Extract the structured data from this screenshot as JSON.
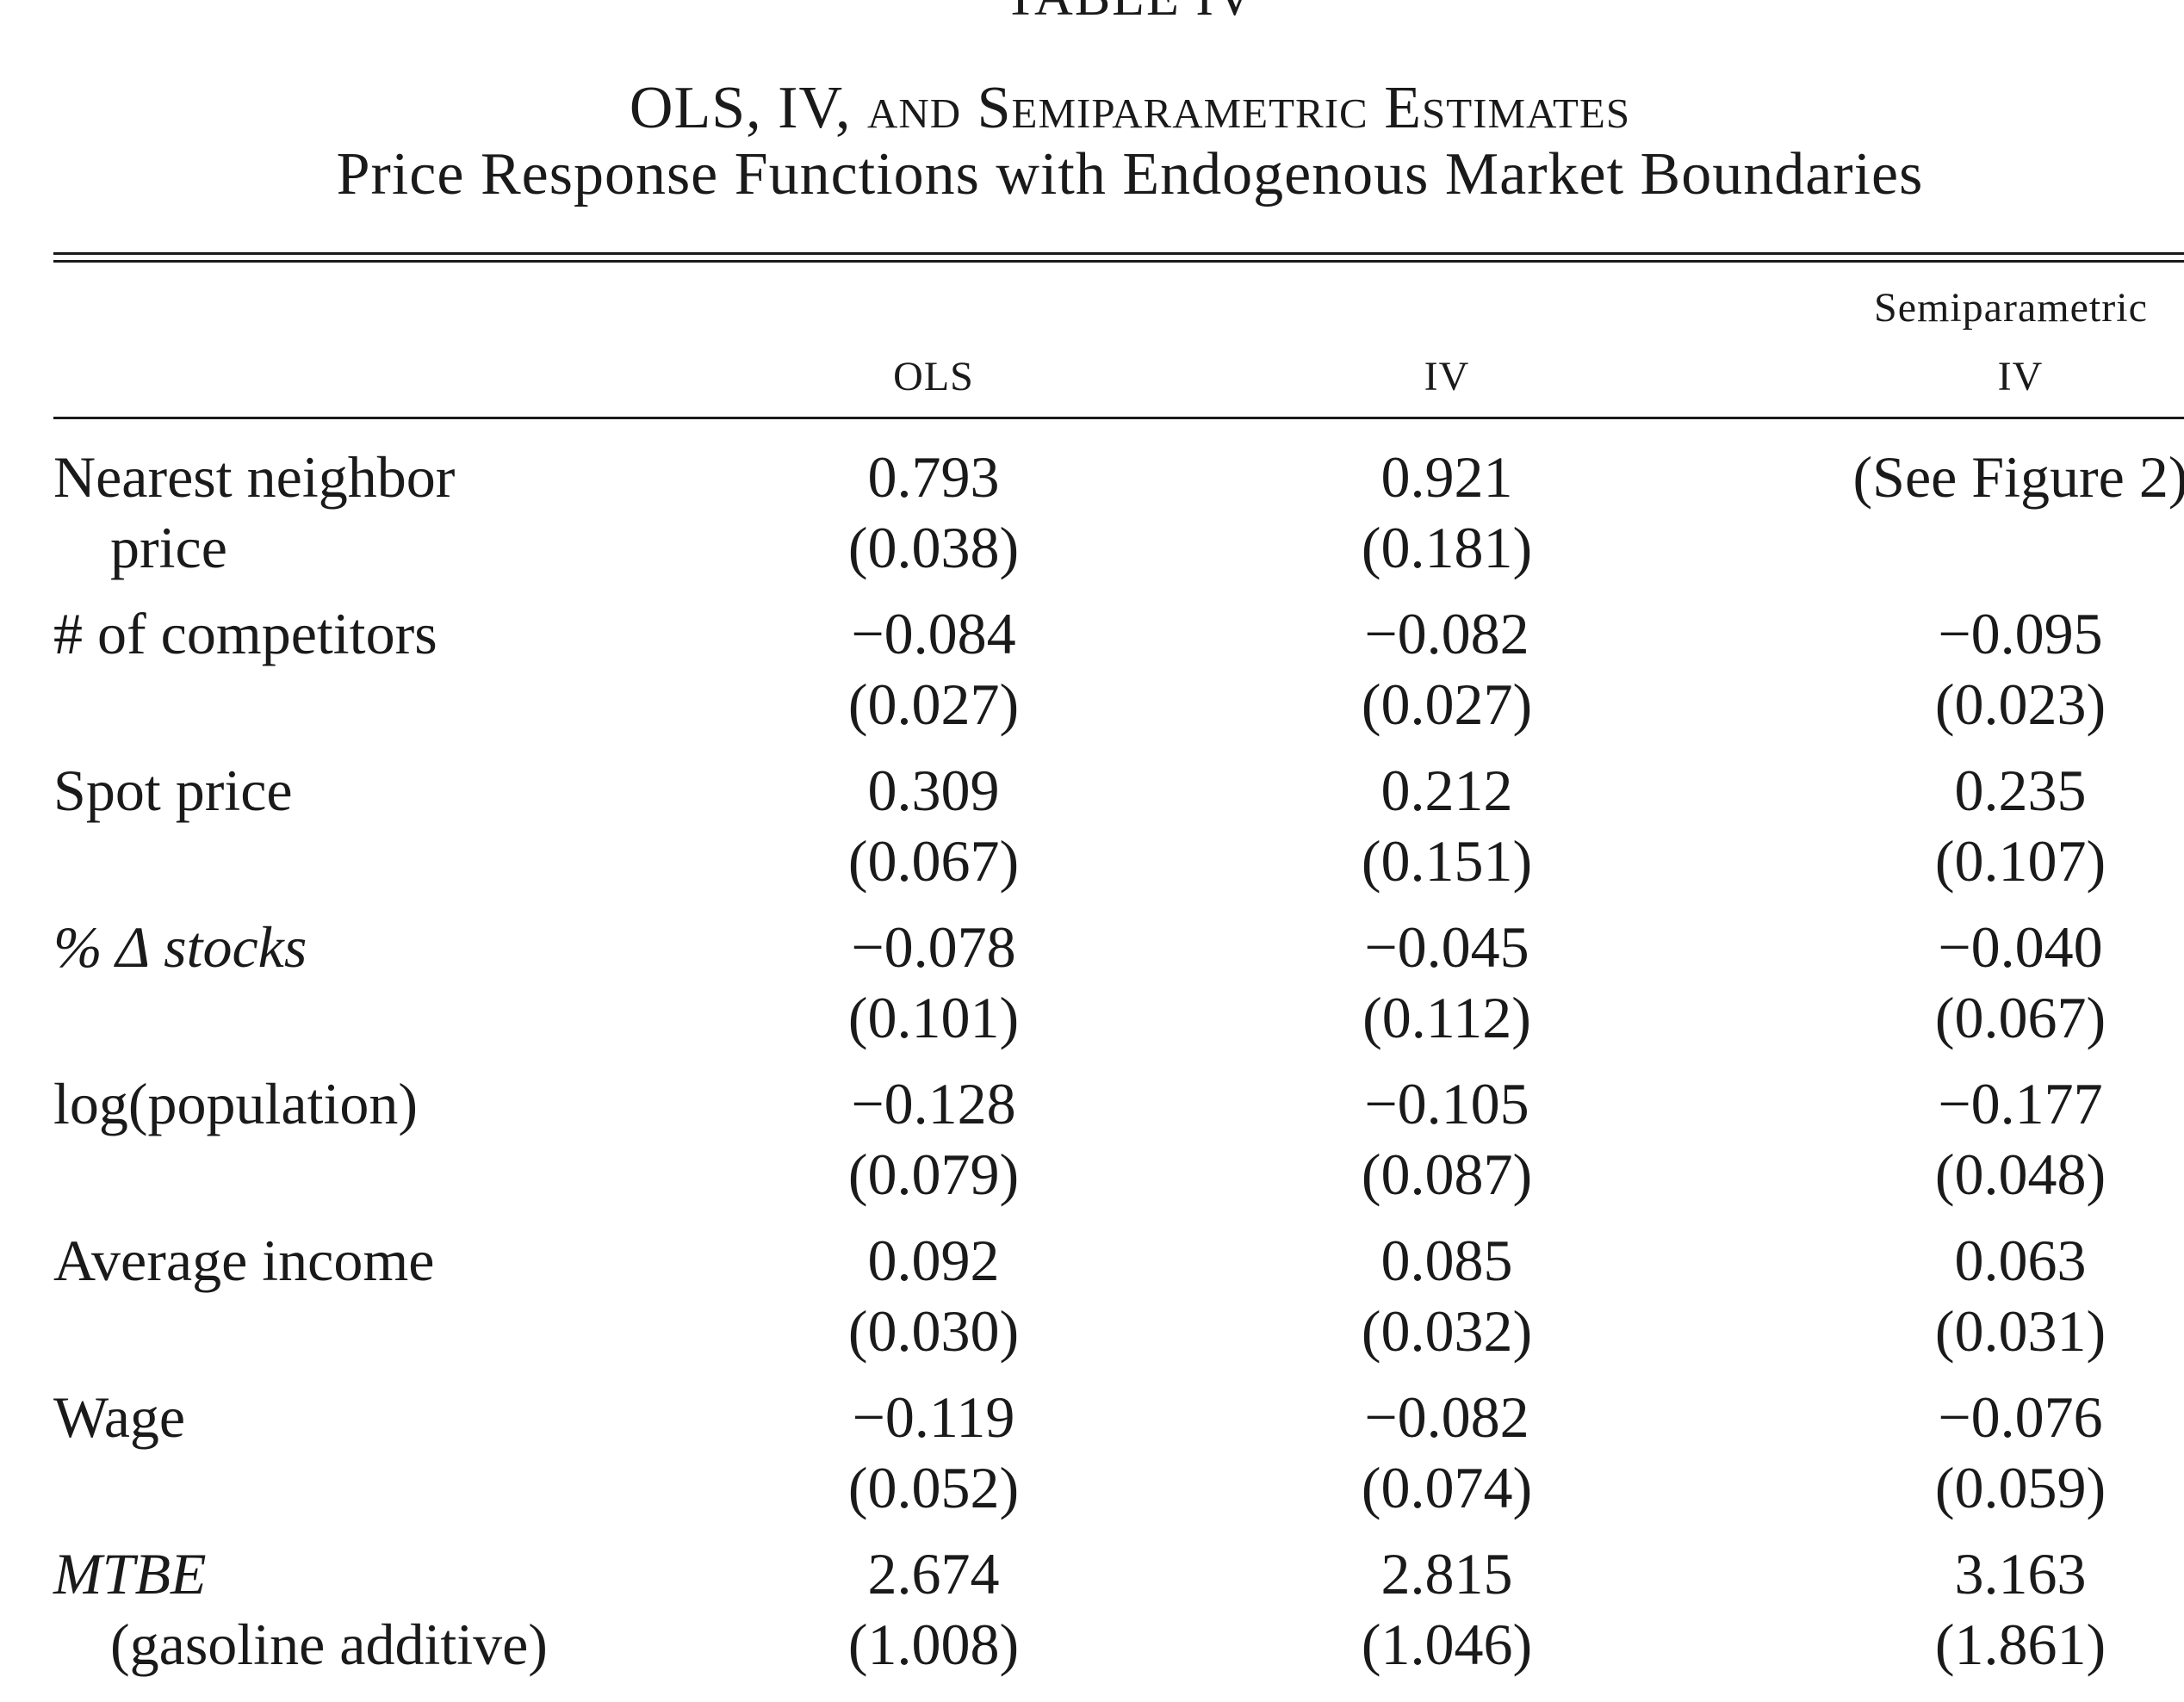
{
  "table": {
    "label": "TABLE IV",
    "title": "OLS, IV, and Semiparametric Estimates",
    "subtitle": "Price Response Functions with Endogenous Market Boundaries",
    "header": {
      "super": "Semiparametric",
      "columns": [
        "OLS",
        "IV",
        "IV"
      ]
    },
    "rows": [
      {
        "label": "Nearest neighbor",
        "label2": "price",
        "values": [
          "0.793",
          "0.921",
          "(See Figure 2)"
        ],
        "ses": [
          "(0.038)",
          "(0.181)",
          ""
        ]
      },
      {
        "label": "# of competitors",
        "label2": "",
        "values": [
          "−0.084",
          "−0.082",
          "−0.095"
        ],
        "ses": [
          "(0.027)",
          "(0.027)",
          "(0.023)"
        ]
      },
      {
        "label": "Spot price",
        "label2": "",
        "values": [
          "0.309",
          "0.212",
          "0.235"
        ],
        "ses": [
          "(0.067)",
          "(0.151)",
          "(0.107)"
        ]
      },
      {
        "label": "% Δ stocks",
        "label2": "",
        "values": [
          "−0.078",
          "−0.045",
          "−0.040"
        ],
        "ses": [
          "(0.101)",
          "(0.112)",
          "(0.067)"
        ]
      },
      {
        "label": "log(population)",
        "label2": "",
        "values": [
          "−0.128",
          "−0.105",
          "−0.177"
        ],
        "ses": [
          "(0.079)",
          "(0.087)",
          "(0.048)"
        ]
      },
      {
        "label": "Average income",
        "label2": "",
        "values": [
          "0.092",
          "0.085",
          "0.063"
        ],
        "ses": [
          "(0.030)",
          "(0.032)",
          "(0.031)"
        ]
      },
      {
        "label": "Wage",
        "label2": "",
        "values": [
          "−0.119",
          "−0.082",
          "−0.076"
        ],
        "ses": [
          "(0.052)",
          "(0.074)",
          "(0.059)"
        ]
      },
      {
        "label": "MTBE",
        "label2": "(gasoline additive)",
        "values": [
          "2.674",
          "2.815",
          "3.163"
        ],
        "ses": [
          "(1.008)",
          "(1.046)",
          "(1.861)"
        ]
      }
    ]
  }
}
